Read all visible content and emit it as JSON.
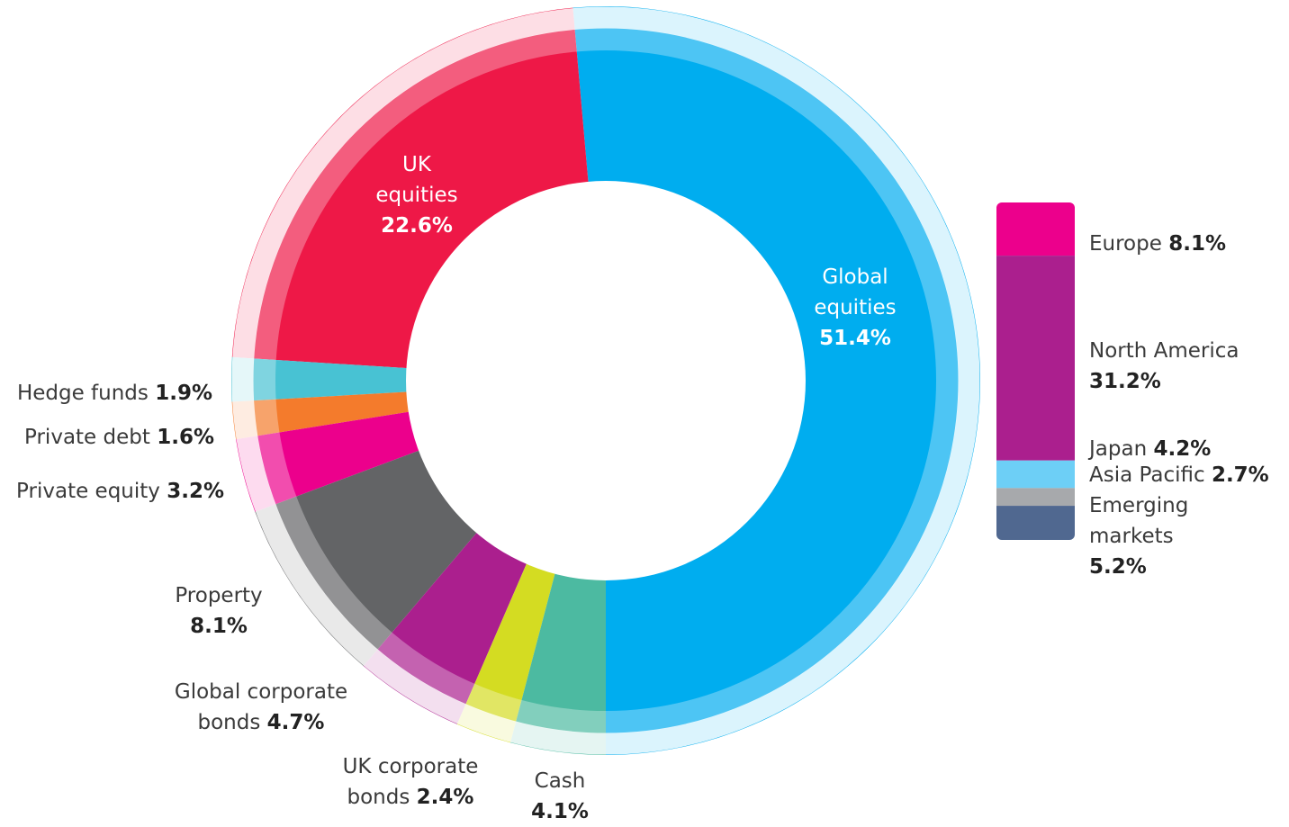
{
  "chart_data": {
    "type": "donut",
    "categories": [
      "Global equities",
      "UK equities",
      "Hedge funds",
      "Private debt",
      "Private equity",
      "Property",
      "Global corporate bonds",
      "UK corporate bonds",
      "Cash"
    ],
    "values": [
      51.4,
      22.6,
      1.9,
      1.6,
      3.2,
      8.1,
      4.7,
      2.4,
      4.1
    ],
    "value_labels": [
      "51.4%",
      "22.6%",
      "1.9%",
      "1.6%",
      "3.2%",
      "8.1%",
      "4.7%",
      "2.4%",
      "4.1%"
    ],
    "colors": [
      "#00adef",
      "#ee1847",
      "#48c2d3",
      "#f47b2c",
      "#ec008c",
      "#636466",
      "#ab1f8e",
      "#d4dc22",
      "#4cbaa1"
    ],
    "breakdown": {
      "categories": [
        "Europe",
        "North America",
        "Japan",
        "Asia Pacific",
        "Emerging markets"
      ],
      "values": [
        8.1,
        31.2,
        4.2,
        2.7,
        5.2
      ],
      "value_labels": [
        "8.1%",
        "31.2%",
        "4.2%",
        "2.7%",
        "5.2%"
      ],
      "colors": [
        "#ec008c",
        "#ab1f8e",
        "#6dcff6",
        "#a7a9ac",
        "#506890"
      ]
    }
  }
}
